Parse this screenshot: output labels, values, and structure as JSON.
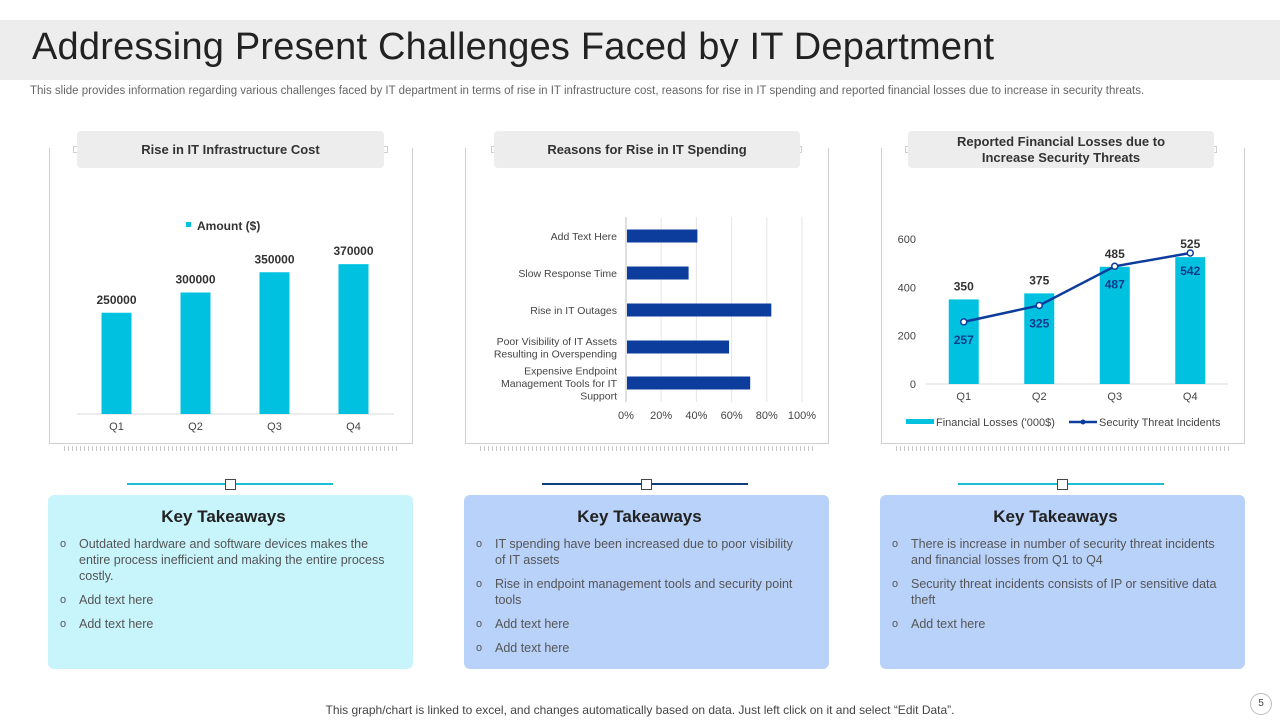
{
  "title": "Addressing Present Challenges Faced by IT Department",
  "subtitle": "This slide provides information regarding various challenges faced by IT  department in terms of rise in IT  infrastructure cost, reasons for rise in IT spending and reported financial losses due to increase in security threats.",
  "panels": [
    {
      "heading": "Rise in IT Infrastructure Cost"
    },
    {
      "heading": "Reasons for Rise in IT Spending"
    },
    {
      "heading": "Reported Financial Losses due to Increase Security Threats"
    }
  ],
  "colors": {
    "cyan": "#00c2e0",
    "navy": "#0d3d9c",
    "box1": "#c8f4fb",
    "box2": "#b8d2fa",
    "box3": "#b8d2fa",
    "conn1": "#1fbcd6",
    "conn2": "#0f3f7a",
    "conn3": "#1fbcd6"
  },
  "chart_data": [
    {
      "type": "bar",
      "title": "Rise in IT Infrastructure Cost",
      "legend": "Amount ($)",
      "categories": [
        "Q1",
        "Q2",
        "Q3",
        "Q4"
      ],
      "values": [
        250000,
        300000,
        350000,
        370000
      ],
      "value_labels": [
        "250000",
        "300000",
        "350000",
        "370000"
      ],
      "ylim": [
        0,
        400000
      ]
    },
    {
      "type": "bar",
      "orientation": "horizontal",
      "title": "Reasons for Rise in IT Spending",
      "categories": [
        "Add Text Here",
        "Slow Response Time",
        "Rise in IT Outages",
        "Poor Visibility of IT Assets Resulting in Overspending",
        "Expensive Endpoint Management Tools for IT Support"
      ],
      "category_lines": [
        [
          "Add Text Here"
        ],
        [
          "Slow Response Time"
        ],
        [
          "Rise in IT Outages"
        ],
        [
          "Poor Visibility of IT Assets",
          "Resulting in Overspending"
        ],
        [
          "Expensive Endpoint",
          "Management Tools for IT",
          "Support"
        ]
      ],
      "values": [
        40,
        35,
        82,
        58,
        70
      ],
      "xlim": [
        0,
        100
      ],
      "xticks": [
        "0%",
        "20%",
        "40%",
        "60%",
        "80%",
        "100%"
      ]
    },
    {
      "type": "bar+line",
      "title": "Reported Financial Losses due to Increase Security Threats",
      "categories": [
        "Q1",
        "Q2",
        "Q3",
        "Q4"
      ],
      "series": [
        {
          "name": "Financial Losses ('000$)",
          "type": "bar",
          "values": [
            350,
            375,
            485,
            525
          ]
        },
        {
          "name": "Security Threat Incidents",
          "type": "line",
          "values": [
            257,
            325,
            487,
            542
          ]
        }
      ],
      "yticks": [
        "0",
        "200",
        "400",
        "600"
      ],
      "ylim": [
        0,
        600
      ]
    }
  ],
  "takeaways": [
    {
      "heading": "Key Takeaways",
      "items": [
        "Outdated hardware and software devices makes the entire process inefficient  and making the entire process costly.",
        "Add text here",
        "Add text here"
      ]
    },
    {
      "heading": "Key Takeaways",
      "items": [
        "IT spending have been increased due to poor visibility of IT assets",
        "Rise in endpoint  management tools and security point tools",
        "Add text here",
        "Add text here"
      ]
    },
    {
      "heading": "Key Takeaways",
      "items": [
        "There is increase in number of security threat incidents and financial losses from Q1 to Q4",
        "Security threat incidents consists of IP or sensitive data theft",
        "Add text here"
      ]
    }
  ],
  "bullet_char": "o",
  "footer": "This graph/chart is linked to excel,  and changes automatically based on data. Just left click on it and select “Edit Data”.",
  "page_number": "5"
}
